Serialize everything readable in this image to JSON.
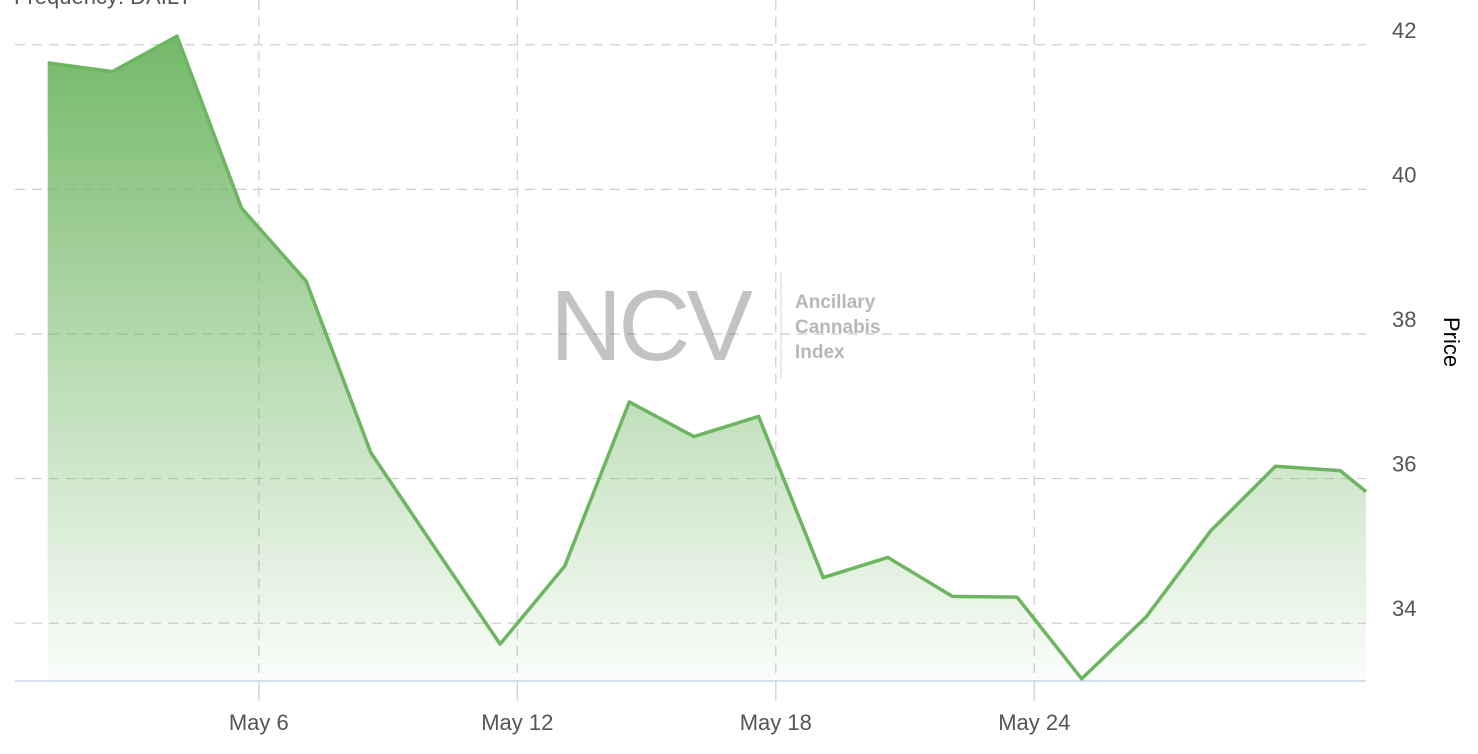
{
  "chart_data": {
    "type": "area",
    "subtitle": "Frequency: DAILY",
    "y_label": "Price",
    "watermark": {
      "logo": "NCV",
      "lines": [
        "Ancillary",
        "Cannabis",
        "Index"
      ]
    },
    "x": [
      1.1,
      2.6,
      4.1,
      5.6,
      7.1,
      8.6,
      10.1,
      11.6,
      13.1,
      14.6,
      16.1,
      17.6,
      19.1,
      20.6,
      22.1,
      23.6,
      25.1,
      26.6,
      28.1,
      29.6,
      31.1,
      31.7
    ],
    "values": [
      41.75,
      41.63,
      42.12,
      39.74,
      38.73,
      36.36,
      35.03,
      33.71,
      34.79,
      37.06,
      36.58,
      36.86,
      34.63,
      34.91,
      34.37,
      34.36,
      33.23,
      34.09,
      35.28,
      36.17,
      36.11,
      35.82
    ],
    "color": "#6db561",
    "xlim": [
      0.34,
      31.7
    ],
    "ylim": [
      33.2,
      42.62
    ],
    "xticks": [
      {
        "value": 6,
        "label": "May 6"
      },
      {
        "value": 12,
        "label": "May 12"
      },
      {
        "value": 18,
        "label": "May 18"
      },
      {
        "value": 24,
        "label": "May 24"
      }
    ],
    "yticks": [
      34,
      36,
      38,
      40,
      42
    ],
    "grid": true
  }
}
